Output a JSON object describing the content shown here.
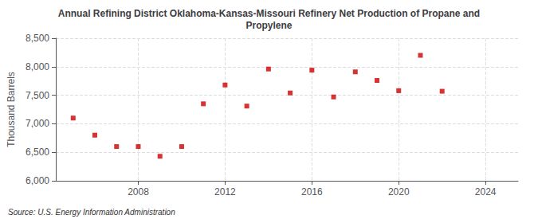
{
  "chart_data": {
    "type": "scatter",
    "title": "Annual Refining District Oklahoma-Kansas-Missouri Refinery Net Production of Propane and\nPropylene",
    "ylabel": "Thousand Barrels",
    "annotations": [
      "Source: U.S. Energy Information Administration"
    ],
    "x": [
      2005,
      2006,
      2007,
      2008,
      2009,
      2010,
      2011,
      2012,
      2013,
      2014,
      2015,
      2016,
      2017,
      2018,
      2019,
      2020,
      2021,
      2022
    ],
    "values": [
      7100,
      6800,
      6600,
      6600,
      6430,
      6600,
      7350,
      7680,
      7310,
      7960,
      7540,
      7940,
      7470,
      7910,
      7760,
      7580,
      8200,
      7570
    ],
    "color": "#cc0000",
    "marker": "square",
    "xlim": [
      2004.2,
      2025.5
    ],
    "xticks": [
      2008,
      2012,
      2016,
      2020,
      2024
    ],
    "ylim": [
      6000,
      8500
    ],
    "yticks": [
      {
        "value": 6000,
        "label": "6,000"
      },
      {
        "value": 6500,
        "label": "6,500"
      },
      {
        "value": 7000,
        "label": "7,000"
      },
      {
        "value": 7500,
        "label": "7,500"
      },
      {
        "value": 8000,
        "label": "8,000"
      },
      {
        "value": 8500,
        "label": "8,500"
      }
    ],
    "grid": true
  }
}
